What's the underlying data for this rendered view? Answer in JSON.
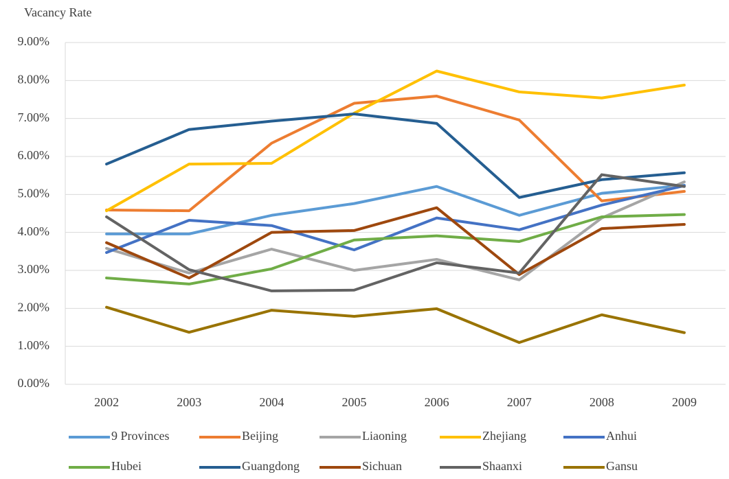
{
  "chart_data": {
    "type": "line",
    "title": "Vacancy Rate",
    "categories": [
      "2002",
      "2003",
      "2004",
      "2005",
      "2006",
      "2007",
      "2008",
      "2009"
    ],
    "ylim": [
      0,
      9
    ],
    "yticks": [
      {
        "value": 0,
        "label": "0.00%"
      },
      {
        "value": 1,
        "label": "1.00%"
      },
      {
        "value": 2,
        "label": "2.00%"
      },
      {
        "value": 3,
        "label": "3.00%"
      },
      {
        "value": 4,
        "label": "4.00%"
      },
      {
        "value": 5,
        "label": "5.00%"
      },
      {
        "value": 6,
        "label": "6.00%"
      },
      {
        "value": 7,
        "label": "7.00%"
      },
      {
        "value": 8,
        "label": "8.00%"
      },
      {
        "value": 9,
        "label": "9.00%"
      }
    ],
    "grid": true,
    "legend": "bottom",
    "series": [
      {
        "name": "9 Provinces",
        "color": "#5b9bd5",
        "values": [
          3.96,
          3.96,
          4.45,
          4.76,
          5.21,
          4.45,
          5.03,
          5.24
        ]
      },
      {
        "name": "Beijing",
        "color": "#ed7d31",
        "values": [
          4.59,
          4.57,
          6.35,
          7.4,
          7.59,
          6.96,
          4.83,
          5.08
        ]
      },
      {
        "name": "Liaoning",
        "color": "#a5a5a5",
        "values": [
          3.58,
          2.93,
          3.56,
          3.0,
          3.29,
          2.75,
          4.38,
          5.33
        ]
      },
      {
        "name": "Zhejiang",
        "color": "#ffc000",
        "values": [
          4.57,
          5.8,
          5.82,
          7.14,
          8.25,
          7.7,
          7.54,
          7.88
        ]
      },
      {
        "name": "Anhui",
        "color": "#4472c4",
        "values": [
          3.47,
          4.32,
          4.18,
          3.54,
          4.38,
          4.07,
          4.72,
          5.23
        ]
      },
      {
        "name": "Hubei",
        "color": "#70ad47",
        "values": [
          2.8,
          2.64,
          3.04,
          3.8,
          3.91,
          3.76,
          4.41,
          4.47
        ]
      },
      {
        "name": "Guangdong",
        "color": "#255e91",
        "values": [
          5.8,
          6.71,
          6.93,
          7.12,
          6.87,
          4.92,
          5.39,
          5.57
        ]
      },
      {
        "name": "Sichuan",
        "color": "#9e480e",
        "values": [
          3.73,
          2.8,
          4.0,
          4.05,
          4.65,
          2.89,
          4.1,
          4.21
        ]
      },
      {
        "name": "Shaanxi",
        "color": "#636363",
        "values": [
          4.41,
          3.02,
          2.46,
          2.48,
          3.2,
          2.93,
          5.52,
          5.21
        ]
      },
      {
        "name": "Gansu",
        "color": "#997300",
        "values": [
          2.03,
          1.37,
          1.95,
          1.79,
          1.99,
          1.1,
          1.83,
          1.36
        ]
      }
    ]
  }
}
